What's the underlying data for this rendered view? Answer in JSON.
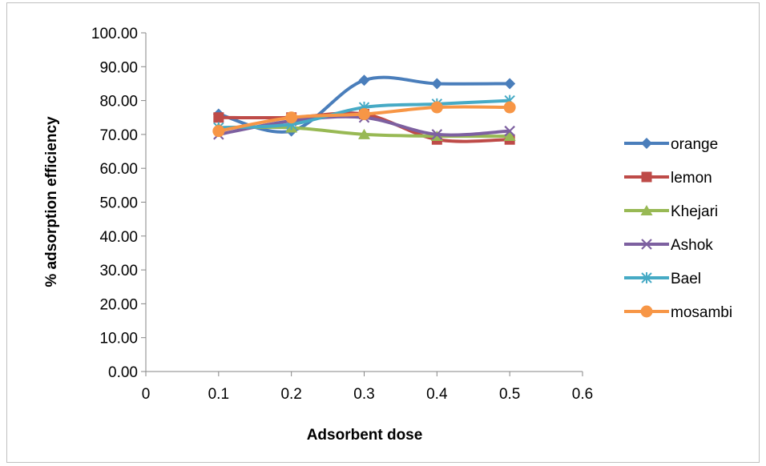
{
  "chart_data": {
    "type": "line",
    "title": "",
    "xlabel": "Adsorbent dose",
    "ylabel": "% adsorption efficiency",
    "xlim": [
      0,
      0.6
    ],
    "ylim": [
      0,
      100
    ],
    "x_ticks": [
      "0",
      "0.1",
      "0.2",
      "0.3",
      "0.4",
      "0.5",
      "0.6"
    ],
    "y_ticks": [
      "0.00",
      "10.00",
      "20.00",
      "30.00",
      "40.00",
      "50.00",
      "60.00",
      "70.00",
      "80.00",
      "90.00",
      "100.00"
    ],
    "grid": false,
    "smooth": true,
    "legend_position": "right",
    "x": [
      0.1,
      0.2,
      0.3,
      0.4,
      0.5
    ],
    "series": [
      {
        "name": "orange",
        "values": [
          76,
          71,
          86,
          85,
          85
        ],
        "color": "#4A7EBB",
        "marker": "diamond"
      },
      {
        "name": "lemon",
        "values": [
          75,
          75,
          76,
          68.5,
          68.5
        ],
        "color": "#BE4B48",
        "marker": "square"
      },
      {
        "name": "Khejari",
        "values": [
          72,
          72,
          70,
          69.5,
          69.5
        ],
        "color": "#98B954",
        "marker": "triangle"
      },
      {
        "name": "Ashok",
        "values": [
          70,
          74,
          75,
          70,
          71
        ],
        "color": "#7D60A0",
        "marker": "x"
      },
      {
        "name": "Bael",
        "values": [
          72,
          73,
          78,
          79,
          80
        ],
        "color": "#46AAC5",
        "marker": "star"
      },
      {
        "name": "mosambi",
        "values": [
          71,
          75,
          76,
          78,
          78
        ],
        "color": "#F79646",
        "marker": "circle"
      }
    ]
  }
}
